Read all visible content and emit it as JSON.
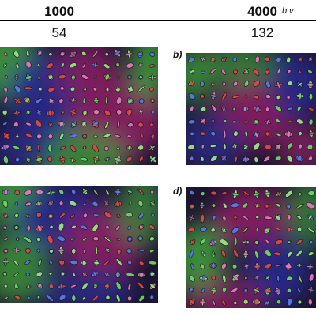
{
  "header": {
    "col1_title": "1000",
    "col2_title": "4000",
    "axis_label": "b v",
    "col1_value": "54",
    "col2_value": "132"
  },
  "panels": {
    "b_label": "b)",
    "d_label": "d)"
  },
  "colors": {
    "green": "#3f9a3a",
    "blue": "#2a2a8c",
    "magenta": "#8a1f62",
    "dark": "#1a1530"
  }
}
